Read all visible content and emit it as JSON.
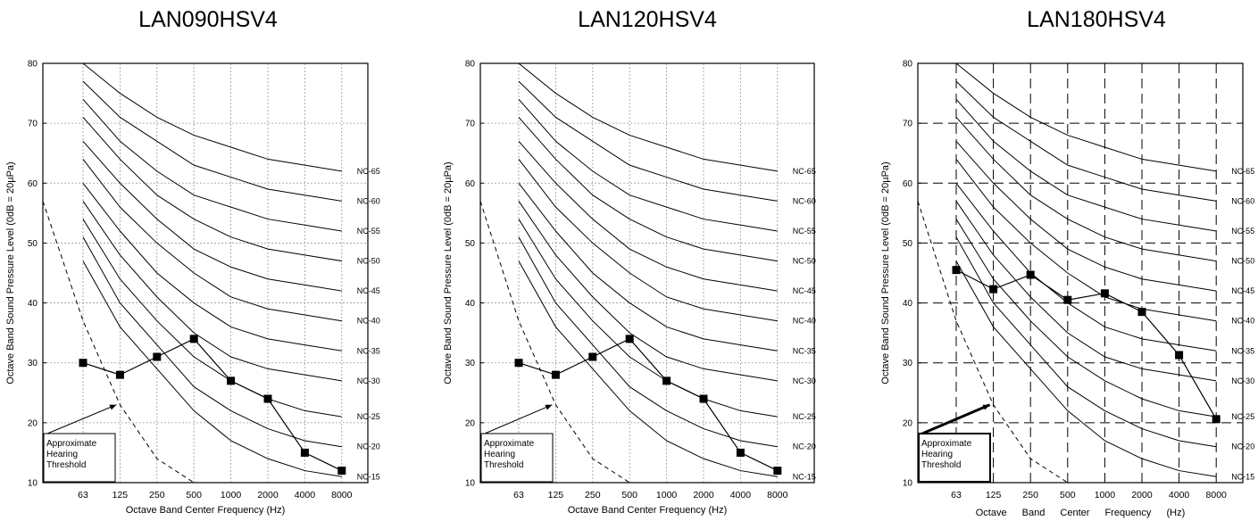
{
  "chart_data": [
    {
      "type": "line",
      "title": "LAN090HSV4",
      "xlabel": "Octave Band Center Frequency (Hz)",
      "ylabel": "Octave Band Sound Pressure Level (0dB = 20µPa)",
      "categories": [
        "63",
        "125",
        "250",
        "500",
        "1000",
        "2000",
        "4000",
        "8000"
      ],
      "ylim": [
        10,
        80
      ],
      "yticks": [
        "10",
        "20",
        "30",
        "40",
        "50",
        "60",
        "70",
        "80"
      ],
      "grid": "dotted",
      "nc_curves": [
        {
          "name": "NC-65",
          "values": [
            80,
            75,
            71,
            68,
            66,
            64,
            63,
            62
          ]
        },
        {
          "name": "NC-60",
          "values": [
            77,
            71,
            67,
            63,
            61,
            59,
            58,
            57
          ]
        },
        {
          "name": "NC-55",
          "values": [
            74,
            67,
            62,
            58,
            56,
            54,
            53,
            52
          ]
        },
        {
          "name": "NC-50",
          "values": [
            71,
            64,
            58,
            54,
            51,
            49,
            48,
            47
          ]
        },
        {
          "name": "NC-45",
          "values": [
            67,
            60,
            54,
            49,
            46,
            44,
            43,
            42
          ]
        },
        {
          "name": "NC-40",
          "values": [
            64,
            56,
            50,
            45,
            41,
            39,
            38,
            37
          ]
        },
        {
          "name": "NC-35",
          "values": [
            60,
            52,
            45,
            40,
            36,
            34,
            33,
            32
          ]
        },
        {
          "name": "NC-30",
          "values": [
            57,
            48,
            41,
            35,
            31,
            29,
            28,
            27
          ]
        },
        {
          "name": "NC-25",
          "values": [
            54,
            44,
            37,
            31,
            27,
            24,
            22,
            21
          ]
        },
        {
          "name": "NC-20",
          "values": [
            51,
            40,
            33,
            26,
            22,
            19,
            17,
            16
          ]
        },
        {
          "name": "NC-15",
          "values": [
            47,
            36,
            29,
            22,
            17,
            14,
            12,
            11
          ]
        }
      ],
      "measured": [
        30,
        28,
        31,
        34,
        27,
        24,
        15,
        12
      ],
      "threshold_curve": [
        [
          -1,
          57
        ],
        [
          0,
          37
        ],
        [
          1,
          23
        ],
        [
          2,
          14
        ],
        [
          3,
          10
        ]
      ],
      "annotation": {
        "lines": [
          "Approximate",
          "Hearing",
          "Threshold"
        ]
      }
    },
    {
      "type": "line",
      "title": "LAN120HSV4",
      "xlabel": "Octave Band Center Frequency (Hz)",
      "ylabel": "Octave Band Sound Pressure Level (0dB = 20µPa)",
      "categories": [
        "63",
        "125",
        "250",
        "500",
        "1000",
        "2000",
        "4000",
        "8000"
      ],
      "ylim": [
        10,
        80
      ],
      "yticks": [
        "10",
        "20",
        "30",
        "40",
        "50",
        "60",
        "70",
        "80"
      ],
      "grid": "dotted",
      "nc_curves": [
        {
          "name": "NC-65",
          "values": [
            80,
            75,
            71,
            68,
            66,
            64,
            63,
            62
          ]
        },
        {
          "name": "NC-60",
          "values": [
            77,
            71,
            67,
            63,
            61,
            59,
            58,
            57
          ]
        },
        {
          "name": "NC-55",
          "values": [
            74,
            67,
            62,
            58,
            56,
            54,
            53,
            52
          ]
        },
        {
          "name": "NC-50",
          "values": [
            71,
            64,
            58,
            54,
            51,
            49,
            48,
            47
          ]
        },
        {
          "name": "NC-45",
          "values": [
            67,
            60,
            54,
            49,
            46,
            44,
            43,
            42
          ]
        },
        {
          "name": "NC-40",
          "values": [
            64,
            56,
            50,
            45,
            41,
            39,
            38,
            37
          ]
        },
        {
          "name": "NC-35",
          "values": [
            60,
            52,
            45,
            40,
            36,
            34,
            33,
            32
          ]
        },
        {
          "name": "NC-30",
          "values": [
            57,
            48,
            41,
            35,
            31,
            29,
            28,
            27
          ]
        },
        {
          "name": "NC-25",
          "values": [
            54,
            44,
            37,
            31,
            27,
            24,
            22,
            21
          ]
        },
        {
          "name": "NC-20",
          "values": [
            51,
            40,
            33,
            26,
            22,
            19,
            17,
            16
          ]
        },
        {
          "name": "NC-15",
          "values": [
            47,
            36,
            29,
            22,
            17,
            14,
            12,
            11
          ]
        }
      ],
      "measured": [
        30,
        28,
        31,
        34,
        27,
        24,
        15,
        12
      ],
      "threshold_curve": [
        [
          -1,
          57
        ],
        [
          0,
          37
        ],
        [
          1,
          23
        ],
        [
          2,
          14
        ],
        [
          3,
          10
        ]
      ],
      "annotation": {
        "lines": [
          "Approximate",
          "Hearing",
          "Threshold"
        ]
      }
    },
    {
      "type": "line",
      "title": "LAN180HSV4",
      "xlabel": "Octave Band Center Frequency (Hz)",
      "ylabel": "Octave Band Sound Pressure Level (0dB = 20µPa)",
      "categories": [
        "63",
        "125",
        "250",
        "500",
        "1000",
        "2000",
        "4000",
        "8000"
      ],
      "ylim": [
        10,
        80
      ],
      "yticks": [
        "10",
        "20",
        "30",
        "40",
        "50",
        "60",
        "70",
        "80"
      ],
      "grid": "dashed",
      "nc_curves": [
        {
          "name": "NC-65",
          "values": [
            80,
            75,
            71,
            68,
            66,
            64,
            63,
            62
          ]
        },
        {
          "name": "NC-60",
          "values": [
            77,
            71,
            67,
            63,
            61,
            59,
            58,
            57
          ]
        },
        {
          "name": "NC-55",
          "values": [
            74,
            67,
            62,
            58,
            56,
            54,
            53,
            52
          ]
        },
        {
          "name": "NC-50",
          "values": [
            71,
            64,
            58,
            54,
            51,
            49,
            48,
            47
          ]
        },
        {
          "name": "NC-45",
          "values": [
            67,
            60,
            54,
            49,
            46,
            44,
            43,
            42
          ]
        },
        {
          "name": "NC-40",
          "values": [
            64,
            56,
            50,
            45,
            41,
            39,
            38,
            37
          ]
        },
        {
          "name": "NC-35",
          "values": [
            60,
            52,
            45,
            40,
            36,
            34,
            33,
            32
          ]
        },
        {
          "name": "NC-30",
          "values": [
            57,
            48,
            41,
            35,
            31,
            29,
            28,
            27
          ]
        },
        {
          "name": "NC-25",
          "values": [
            54,
            44,
            37,
            31,
            27,
            24,
            22,
            21
          ]
        },
        {
          "name": "NC-20",
          "values": [
            51,
            40,
            33,
            26,
            22,
            19,
            17,
            16
          ]
        },
        {
          "name": "NC-15",
          "values": [
            47,
            36,
            29,
            22,
            17,
            14,
            12,
            11
          ]
        }
      ],
      "measured": [
        45.5,
        42.3,
        44.7,
        40.5,
        41.6,
        38.5,
        31.3,
        20.6
      ],
      "threshold_curve": [
        [
          -1,
          57
        ],
        [
          0,
          37
        ],
        [
          1,
          23
        ],
        [
          2,
          14
        ],
        [
          3,
          10
        ]
      ],
      "annotation": {
        "lines": [
          "Approximate",
          "Hearing",
          "Threshold"
        ]
      }
    }
  ]
}
